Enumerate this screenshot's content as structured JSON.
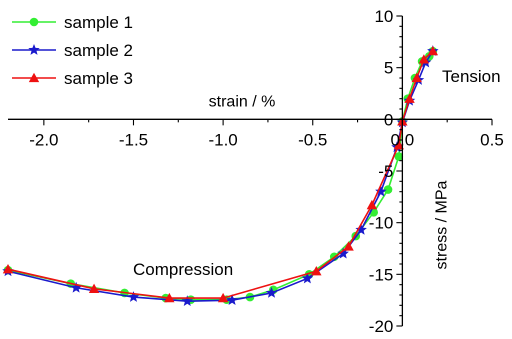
{
  "chart_data": {
    "type": "line",
    "xlabel": "strain / %",
    "ylabel": "stress / MPa",
    "xlim": [
      -2.2,
      0.5
    ],
    "ylim": [
      -20,
      10
    ],
    "x_ticks": [
      -2.0,
      -1.5,
      -1.0,
      -0.5,
      0.0,
      0.5
    ],
    "x_tick_labels": [
      "-2.0",
      "-1.5",
      "-1.0",
      "-0.5",
      "0.0",
      "0.5"
    ],
    "y_ticks": [
      10,
      5,
      0,
      -5,
      -10,
      -15,
      -20
    ],
    "y_tick_labels": [
      "10",
      "5",
      "0",
      "-5",
      "-10",
      "-15",
      "-20"
    ],
    "annotations": [
      {
        "text": "Tension",
        "x": 0.2,
        "y": 4
      },
      {
        "text": "Compression",
        "x": -1.3,
        "y": -14.2
      }
    ],
    "legend_position": "top-left",
    "series": [
      {
        "name": "sample 1",
        "color": "#33ee33",
        "marker": "circle",
        "x": [
          -2.2,
          -1.85,
          -1.55,
          -1.32,
          -1.18,
          -0.98,
          -0.85,
          -0.72,
          -0.52,
          -0.38,
          -0.26,
          -0.16,
          -0.08,
          -0.02,
          0.0,
          0.03,
          0.07,
          0.11,
          0.15,
          0.17
        ],
        "y": [
          -14.6,
          -15.9,
          -16.8,
          -17.3,
          -17.45,
          -17.45,
          -17.2,
          -16.5,
          -15.0,
          -13.3,
          -11.3,
          -9.0,
          -6.8,
          -3.6,
          -0.2,
          2.0,
          4.0,
          5.6,
          6.1,
          6.6
        ]
      },
      {
        "name": "sample 2",
        "color": "#1a1acc",
        "marker": "star",
        "x": [
          -2.2,
          -1.82,
          -1.5,
          -1.2,
          -0.95,
          -0.73,
          -0.53,
          -0.33,
          -0.23,
          -0.12,
          -0.03,
          0.0,
          0.04,
          0.09,
          0.13,
          0.17
        ],
        "y": [
          -14.7,
          -16.3,
          -17.2,
          -17.6,
          -17.5,
          -16.8,
          -15.4,
          -13.0,
          -10.7,
          -7.0,
          -2.7,
          -0.3,
          1.8,
          3.8,
          5.5,
          6.6
        ]
      },
      {
        "name": "sample 3",
        "color": "#ee1111",
        "marker": "triangle",
        "x": [
          -2.2,
          -1.72,
          -1.3,
          -1.0,
          -0.48,
          -0.3,
          -0.17,
          -0.02,
          0.0,
          0.04,
          0.08,
          0.12,
          0.17
        ],
        "y": [
          -14.5,
          -16.4,
          -17.3,
          -17.3,
          -14.7,
          -12.3,
          -8.3,
          -2.5,
          -0.2,
          2.0,
          4.0,
          5.8,
          6.6
        ]
      }
    ]
  }
}
